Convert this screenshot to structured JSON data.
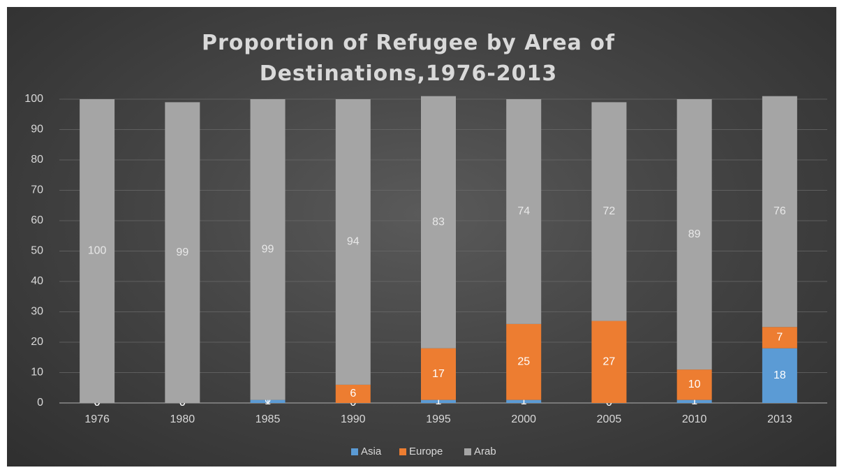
{
  "chart_data": {
    "type": "bar",
    "stacked": true,
    "title_lines": [
      "Proportion of Refugee by Area of",
      "Destinations,1976-2013"
    ],
    "categories": [
      "1976",
      "1980",
      "1985",
      "1990",
      "1995",
      "2000",
      "2005",
      "2010",
      "2013"
    ],
    "series": [
      {
        "name": "Asia",
        "color": "#5b9bd5",
        "values": [
          0,
          0,
          1,
          0,
          1,
          1,
          0,
          1,
          18
        ],
        "labels": [
          "0",
          "0",
          "1",
          "0",
          "1",
          "1",
          "0",
          "1",
          "18"
        ]
      },
      {
        "name": "Europe",
        "color": "#ed7d31",
        "values": [
          0,
          0,
          0,
          6,
          17,
          25,
          27,
          10,
          7
        ],
        "labels": [
          "0",
          "0",
          "0",
          "6",
          "17",
          "25",
          "27",
          "10",
          "7"
        ]
      },
      {
        "name": "Arab",
        "color": "#a5a5a5",
        "values": [
          100,
          99,
          99,
          94,
          83,
          74,
          72,
          89,
          76
        ],
        "labels": [
          "100",
          "99",
          "99",
          "94",
          "83",
          "74",
          "72",
          "89",
          "76"
        ]
      }
    ],
    "ylim": [
      0,
      100
    ],
    "yticks": [
      "0",
      "10",
      "20",
      "30",
      "40",
      "50",
      "60",
      "70",
      "80",
      "90",
      "100"
    ],
    "grid": true,
    "legend_position": "bottom"
  }
}
